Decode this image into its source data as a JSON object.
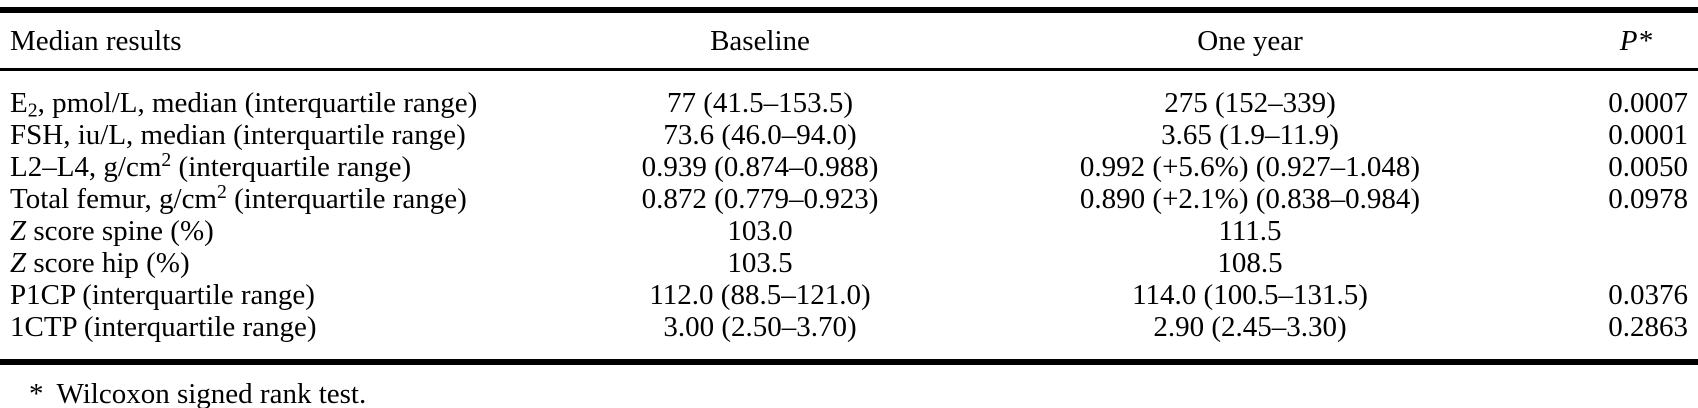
{
  "table": {
    "columns": {
      "label": "Median results",
      "baseline": "Baseline",
      "one_year": "One year",
      "p": "P*"
    },
    "rows": [
      {
        "label_pre": "E",
        "label_sub": "2",
        "label_rest": ", pmol/L, median (interquartile range)",
        "baseline": "77 (41.5–153.5)",
        "one_year": "275 (152–339)",
        "p": "0.0007"
      },
      {
        "label": "FSH, iu/L, median (interquartile range)",
        "baseline": "73.6 (46.0–94.0)",
        "one_year": "3.65 (1.9–11.9)",
        "p": "0.0001"
      },
      {
        "label_pre": "L2–L4, g/cm",
        "label_sup": "2",
        "label_rest": " (interquartile range)",
        "baseline": "0.939 (0.874–0.988)",
        "one_year": "0.992 (+5.6%) (0.927–1.048)",
        "p": "0.0050"
      },
      {
        "label_pre": "Total femur, g/cm",
        "label_sup": "2",
        "label_rest": " (interquartile range)",
        "baseline": "0.872 (0.779–0.923)",
        "one_year": "0.890 (+2.1%) (0.838–0.984)",
        "p": "0.0978"
      },
      {
        "label_italic": "Z",
        "label_rest": " score spine (%)",
        "baseline": "103.0",
        "one_year": "111.5",
        "p": ""
      },
      {
        "label_italic": "Z",
        "label_rest": " score hip (%)",
        "baseline": "103.5",
        "one_year": "108.5",
        "p": ""
      },
      {
        "label": "P1CP (interquartile range)",
        "baseline": "112.0 (88.5–121.0)",
        "one_year": "114.0 (100.5–131.5)",
        "p": "0.0376"
      },
      {
        "label": "1CTP (interquartile range)",
        "baseline": "3.00 (2.50–3.70)",
        "one_year": "2.90 (2.45–3.30)",
        "p": "0.2863"
      }
    ]
  },
  "footnote": {
    "marker": "*",
    "text": "Wilcoxon signed rank test."
  }
}
